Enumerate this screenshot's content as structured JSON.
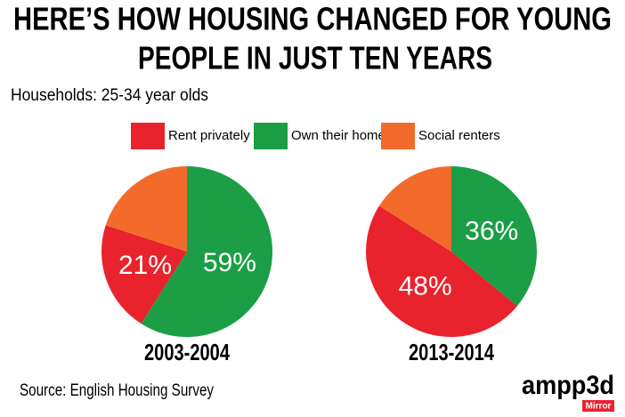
{
  "chart_data": {
    "type": "pie",
    "title": [
      "HERE’S HOW HOUSING CHANGED FOR YOUNG",
      "PEOPLE IN JUST TEN YEARS"
    ],
    "subtitle": "Households: 25-34 year olds",
    "categories": [
      "Rent privately",
      "Own their home",
      "Social renters"
    ],
    "colors": [
      "#e8232d",
      "#1b9e46",
      "#f26b2a"
    ],
    "series": [
      {
        "name": "2003-2004",
        "values": [
          21,
          59,
          20
        ],
        "value_labels": [
          "21%",
          "59%",
          null
        ]
      },
      {
        "name": "2013-2014",
        "values": [
          48,
          36,
          16
        ],
        "value_labels": [
          "48%",
          "36%",
          null
        ]
      }
    ],
    "source": "Source: English Housing Survey"
  },
  "branding": {
    "logo": "ampp3d",
    "partner": "Mirror"
  }
}
